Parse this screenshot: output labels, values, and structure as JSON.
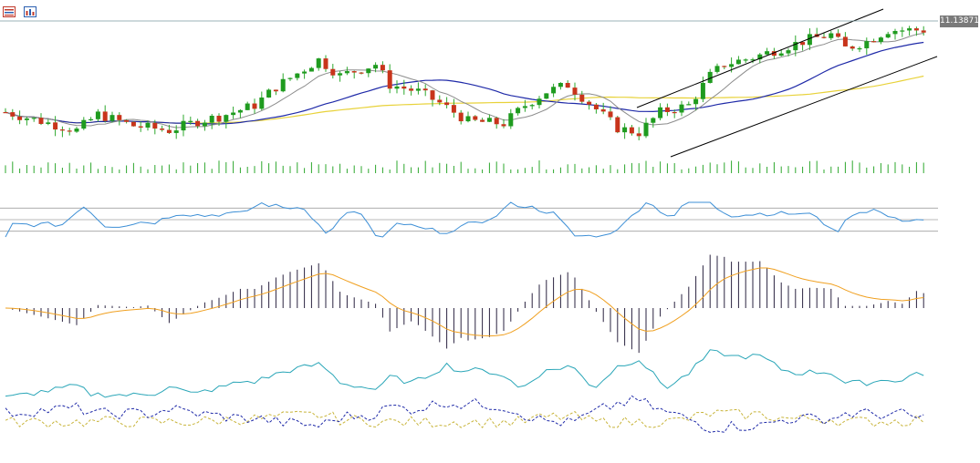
{
  "toolbar": {
    "icons": [
      {
        "name": "chart-list-icon",
        "color": "#c0392b"
      },
      {
        "name": "chart-properties-icon",
        "color": "#2b5fb0"
      }
    ]
  },
  "price_label": "11.13871",
  "colors": {
    "bull": "#1f9b1f",
    "bear": "#c8341b",
    "wick": "#2ea82e",
    "ma_fast": "#8c8c8c",
    "ma_mid": "#1f2aa8",
    "ma_slow": "#e8d23a",
    "volume": "#2ea82e",
    "rsi": "#3d8fd6",
    "rsi_levels": "#a0a0a0",
    "macd_hist": "#2a2340",
    "macd_signal": "#f0a020",
    "adx": "#2aa6b8",
    "plus_di": "#c8b43a",
    "minus_di": "#1f2aa8",
    "channel": "#000000",
    "price_line": "#7a9aa0"
  },
  "chart_data": [
    {
      "type": "candlestick",
      "ohlc": [],
      "volume": [],
      "current_price": 11.13871,
      "indicators": [
        "moving-average-fast",
        "moving-average-mid",
        "moving-average-slow",
        "ascending-channel"
      ]
    },
    {
      "type": "line",
      "indicator": "rsi-oscillator",
      "levels": [
        70,
        50,
        30
      ],
      "values": []
    },
    {
      "type": "bar",
      "indicator": "macd",
      "histogram": [],
      "signal": []
    },
    {
      "type": "line",
      "indicator": "adx-directional-movement",
      "adx": [],
      "plus_di": [],
      "minus_di": []
    }
  ]
}
